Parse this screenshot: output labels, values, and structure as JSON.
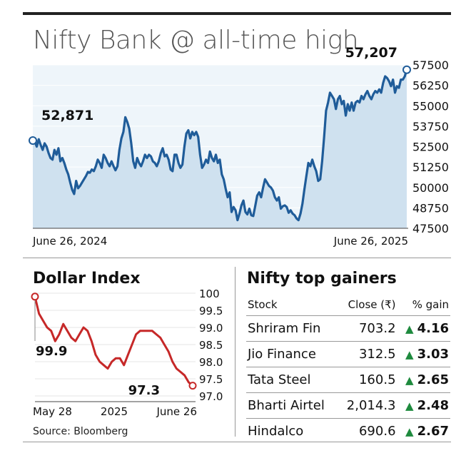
{
  "header": {
    "title": "Nifty Bank @ all-time high"
  },
  "chart_data": [
    {
      "type": "area",
      "title": "Nifty Bank @ all-time high",
      "x_start_label": "June 26, 2024",
      "x_end_label": "June 26, 2025",
      "ylim": [
        47500,
        57500
      ],
      "yticks": [
        47500,
        48750,
        50000,
        51250,
        52500,
        53750,
        55000,
        56250,
        57500
      ],
      "y_axis_side": "right",
      "color": "#1f5c99",
      "fill_color": "#cfe1ef",
      "start_value": 52871,
      "end_value": 57207,
      "start_label": "52,871",
      "end_label": "57,207",
      "values": [
        52871,
        52800,
        52500,
        52950,
        52600,
        52300,
        52700,
        52500,
        52100,
        51800,
        51700,
        52300,
        52000,
        52400,
        51600,
        51800,
        51500,
        51100,
        50800,
        50300,
        49850,
        49600,
        50400,
        49950,
        50100,
        50300,
        50500,
        50700,
        50950,
        50900,
        51100,
        51000,
        51300,
        51700,
        51500,
        51200,
        52000,
        51800,
        51500,
        51300,
        51600,
        51300,
        51050,
        51300,
        52300,
        53000,
        53400,
        54300,
        54000,
        53600,
        52700,
        51600,
        51200,
        51800,
        51500,
        51300,
        51600,
        52000,
        51800,
        52000,
        51900,
        51600,
        51500,
        51300,
        51600,
        52100,
        52400,
        51900,
        52000,
        51700,
        51100,
        51000,
        52000,
        52000,
        51500,
        51200,
        51400,
        52500,
        53300,
        53500,
        53000,
        53400,
        53200,
        53400,
        53100,
        52000,
        51200,
        51400,
        51700,
        51500,
        52200,
        51800,
        51600,
        52000,
        51500,
        51700,
        50800,
        50500,
        49900,
        49400,
        49700,
        48500,
        48800,
        48600,
        48000,
        48400,
        48900,
        49200,
        48500,
        48350,
        48700,
        48300,
        48250,
        48850,
        49500,
        49700,
        49400,
        50000,
        50500,
        50300,
        50100,
        50000,
        49800,
        49400,
        49200,
        49400,
        48700,
        48850,
        48900,
        48800,
        48450,
        48600,
        48400,
        48300,
        48100,
        48000,
        48400,
        49000,
        49900,
        50700,
        51500,
        51300,
        51700,
        51300,
        51000,
        50400,
        50500,
        51600,
        53100,
        54700,
        55200,
        55800,
        55600,
        55400,
        54800,
        55400,
        55600,
        55100,
        55300,
        54400,
        55100,
        54700,
        55200,
        54700,
        55200,
        55300,
        55200,
        55600,
        55400,
        55700,
        55900,
        55600,
        55400,
        55700,
        55900,
        55800,
        56000,
        55800,
        56400,
        56800,
        56700,
        56500,
        56200,
        56600,
        55800,
        56200,
        56100,
        56600,
        56600,
        56800,
        57207
      ]
    },
    {
      "type": "line",
      "title": "Dollar Index",
      "x_tick_labels": [
        "May 28",
        "2025",
        "June 26"
      ],
      "ylim": [
        97.0,
        100
      ],
      "yticks": [
        "100",
        "99.5",
        "99.0",
        "98.5",
        "98.0",
        "97.5",
        "97.0"
      ],
      "y_axis_side": "right",
      "color": "#c62828",
      "start_value": 99.9,
      "end_value": 97.3,
      "start_label": "99.9",
      "end_label": "97.3",
      "values": [
        99.9,
        99.4,
        99.2,
        99.0,
        98.9,
        98.6,
        98.8,
        99.1,
        98.9,
        98.7,
        98.6,
        98.8,
        99.0,
        98.9,
        98.6,
        98.2,
        98.0,
        97.9,
        97.8,
        98.0,
        98.1,
        98.1,
        97.9,
        98.2,
        98.5,
        98.8,
        98.9,
        98.9,
        98.9,
        98.9,
        98.8,
        98.7,
        98.5,
        98.3,
        98.0,
        97.8,
        97.7,
        97.6,
        97.4,
        97.3
      ]
    }
  ],
  "dollar": {
    "title": "Dollar Index",
    "source": "Source: Bloomberg"
  },
  "gainers": {
    "title": "Nifty top gainers",
    "headers": {
      "stock": "Stock",
      "close": "Close (₹)",
      "gain": "% gain"
    },
    "rows": [
      {
        "stock": "Shriram Fin",
        "close": "703.2",
        "gain": "4.16"
      },
      {
        "stock": "Jio Finance",
        "close": "312.5",
        "gain": "3.03"
      },
      {
        "stock": "Tata Steel",
        "close": "160.5",
        "gain": "2.65"
      },
      {
        "stock": "Bharti Airtel",
        "close": "2,014.3",
        "gain": "2.48"
      },
      {
        "stock": "Hindalco",
        "close": "690.6",
        "gain": "2.67"
      }
    ],
    "up_icon": "triangle-up-icon",
    "up_color": "#1e8a3e"
  }
}
